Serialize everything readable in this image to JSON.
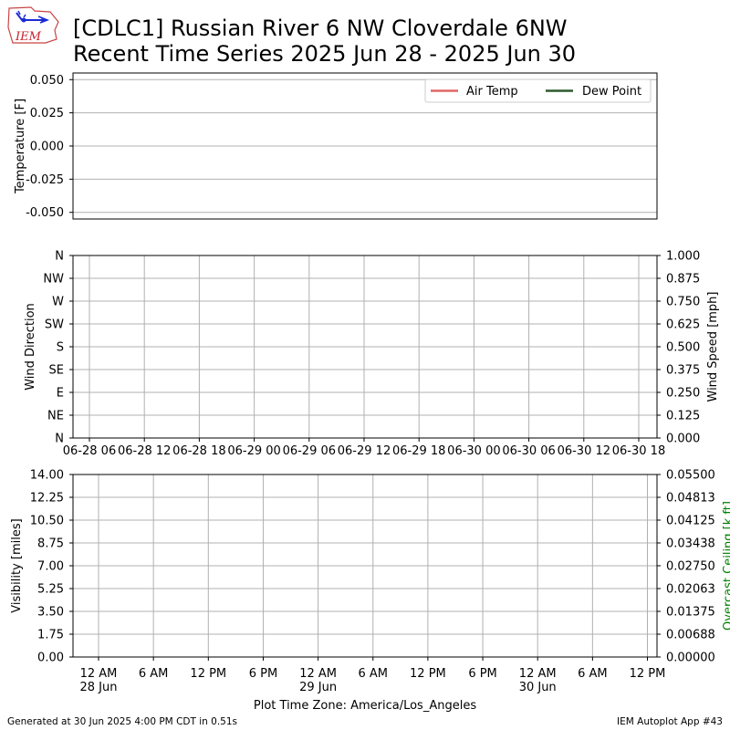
{
  "header": {
    "logo_text": "IEM",
    "title_line1": "[CDLC1] Russian River 6 NW Cloverdale 6NW",
    "title_line2": "Recent Time Series 2025 Jun 28 - 2025 Jun 30"
  },
  "footer": {
    "left": "Generated at 30 Jun 2025 4:00 PM CDT in 0.51s",
    "right": "IEM Autoplot App #43"
  },
  "colors": {
    "air_temp": "#e06666",
    "dew_point": "#2d5a2d",
    "ceiling_label": "#008000",
    "grid": "#b0b0b0"
  },
  "chart_data": [
    {
      "type": "line",
      "ylabel": "Temperature [F]",
      "ylim": [
        -0.055,
        0.055
      ],
      "yticks": [
        "0.050",
        "0.025",
        "0.000",
        "-0.025",
        "-0.050"
      ],
      "ytick_values": [
        0.05,
        0.025,
        0,
        -0.025,
        -0.05
      ],
      "legend": {
        "placement": "top-right",
        "entries": [
          "Air Temp",
          "Dew Point"
        ]
      },
      "series": [
        {
          "name": "Air Temp",
          "values": []
        },
        {
          "name": "Dew Point",
          "values": []
        }
      ],
      "grid": "horizontal"
    },
    {
      "type": "line",
      "ylabel": "Wind Direction",
      "ylabel_right": "Wind Speed [mph]",
      "yticks": [
        "N",
        "NW",
        "W",
        "SW",
        "S",
        "SE",
        "E",
        "NE",
        "N"
      ],
      "yticks_right": [
        "1.000",
        "0.875",
        "0.750",
        "0.625",
        "0.500",
        "0.375",
        "0.250",
        "0.125",
        "0.000"
      ],
      "ylim_right": [
        0,
        1
      ],
      "xticks": [
        "06-28 06",
        "06-28 12",
        "06-28 18",
        "06-29 00",
        "06-29 06",
        "06-29 12",
        "06-29 18",
        "06-30 00",
        "06-30 06",
        "06-30 12",
        "06-30 18"
      ],
      "xlim": [
        "2025-06-28 00:00",
        "2025-06-30 18:00"
      ],
      "series": [],
      "grid": "both"
    },
    {
      "type": "line",
      "ylabel": "Visibility [miles]",
      "ylabel_right": "Overcast Ceiling [k ft]",
      "ylim": [
        0,
        14
      ],
      "yticks": [
        "14.00",
        "12.25",
        "10.50",
        "8.75",
        "7.00",
        "5.25",
        "3.50",
        "1.75",
        "0.00"
      ],
      "yticks_right": [
        "0.05500",
        "0.04813",
        "0.04125",
        "0.03438",
        "0.02750",
        "0.02063",
        "0.01375",
        "0.00688",
        "0.00000"
      ],
      "ylim_right": [
        0,
        0.055
      ],
      "xticks": [
        "12 AM\n28 Jun",
        "6 AM",
        "12 PM",
        "6 PM",
        "12 AM\n29 Jun",
        "6 AM",
        "12 PM",
        "6 PM",
        "12 AM\n30 Jun",
        "6 AM",
        "12 PM"
      ],
      "xlim": [
        "2025-06-27 21:13",
        "2025-06-30 13:04"
      ],
      "xlabel": "Plot Time Zone: America/Los_Angeles",
      "series": [],
      "grid": "both"
    }
  ]
}
